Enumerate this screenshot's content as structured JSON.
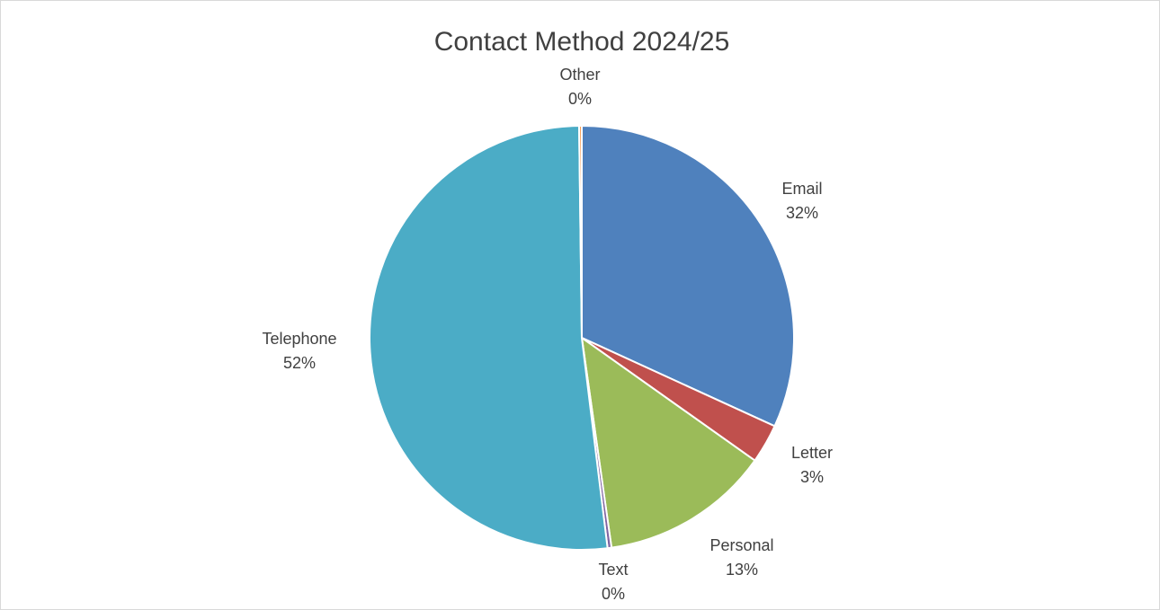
{
  "chart_data": {
    "type": "pie",
    "title": "Contact Method 2024/25",
    "categories": [
      "Email",
      "Letter",
      "Personal",
      "Text",
      "Telephone",
      "Other"
    ],
    "values": [
      32,
      3,
      13,
      0.3,
      52,
      0.2
    ],
    "value_labels": [
      "32%",
      "3%",
      "13%",
      "0%",
      "52%",
      "0%"
    ],
    "colors": [
      "#4f81bd",
      "#c0504d",
      "#9bbb59",
      "#8064a2",
      "#4bacc6",
      "#f79646"
    ]
  }
}
